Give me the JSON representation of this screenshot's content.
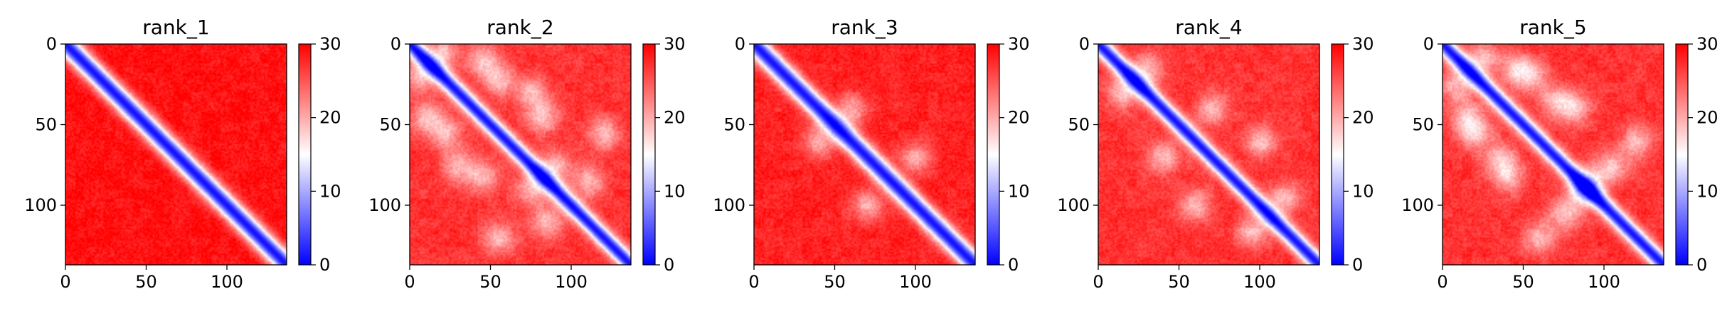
{
  "chart_data": [
    {
      "type": "heatmap",
      "title": "rank_1",
      "n": 137,
      "zlim": [
        0,
        30
      ],
      "colormap": "bwr",
      "x_ticks": [
        0,
        50,
        100
      ],
      "y_ticks": [
        0,
        50,
        100
      ],
      "colorbar_ticks": [
        0,
        10,
        20,
        30
      ],
      "features": {
        "diagonal_width": 6,
        "off_diagonal_level": 29,
        "light_blobs": []
      }
    },
    {
      "type": "heatmap",
      "title": "rank_2",
      "n": 137,
      "zlim": [
        0,
        30
      ],
      "colormap": "bwr",
      "x_ticks": [
        0,
        50,
        100
      ],
      "y_ticks": [
        0,
        50,
        100
      ],
      "colorbar_ticks": [
        0,
        10,
        20,
        30
      ],
      "features": {
        "diagonal_width": 5,
        "off_diagonal_level": 27,
        "light_blobs": [
          [
            20,
            5
          ],
          [
            55,
            22
          ],
          [
            82,
            45
          ],
          [
            90,
            75
          ],
          [
            110,
            85
          ],
          [
            120,
            55
          ],
          [
            45,
            10
          ],
          [
            75,
            30
          ]
        ]
      }
    },
    {
      "type": "heatmap",
      "title": "rank_3",
      "n": 137,
      "zlim": [
        0,
        30
      ],
      "colormap": "bwr",
      "x_ticks": [
        0,
        50,
        100
      ],
      "y_ticks": [
        0,
        50,
        100
      ],
      "colorbar_ticks": [
        0,
        10,
        20,
        30
      ],
      "features": {
        "diagonal_width": 6,
        "off_diagonal_level": 28,
        "light_blobs": [
          [
            60,
            40
          ],
          [
            100,
            70
          ]
        ]
      }
    },
    {
      "type": "heatmap",
      "title": "rank_4",
      "n": 137,
      "zlim": [
        0,
        30
      ],
      "colormap": "bwr",
      "x_ticks": [
        0,
        50,
        100
      ],
      "y_ticks": [
        0,
        50,
        100
      ],
      "colorbar_ticks": [
        0,
        10,
        20,
        30
      ],
      "features": {
        "diagonal_width": 5,
        "off_diagonal_level": 27,
        "light_blobs": [
          [
            30,
            15
          ],
          [
            70,
            40
          ],
          [
            100,
            60
          ],
          [
            115,
            95
          ]
        ]
      }
    },
    {
      "type": "heatmap",
      "title": "rank_5",
      "n": 137,
      "zlim": [
        0,
        30
      ],
      "colormap": "bwr",
      "x_ticks": [
        0,
        50,
        100
      ],
      "y_ticks": [
        0,
        50,
        100
      ],
      "colorbar_ticks": [
        0,
        10,
        20,
        30
      ],
      "features": {
        "diagonal_width": 5,
        "off_diagonal_level": 27,
        "light_blobs": [
          [
            25,
            8
          ],
          [
            55,
            20
          ],
          [
            82,
            40
          ],
          [
            105,
            75
          ],
          [
            120,
            60
          ],
          [
            92,
            85
          ],
          [
            45,
            15
          ],
          [
            70,
            35
          ]
        ]
      }
    }
  ]
}
